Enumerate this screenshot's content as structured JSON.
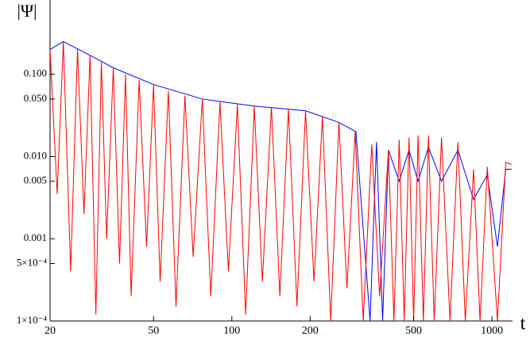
{
  "chart_data": {
    "type": "line",
    "ylabel": "|Ψ|",
    "xlabel": "t",
    "xscale": "log",
    "yscale": "log",
    "xlim": [
      20,
      1200
    ],
    "ylim": [
      0.0001,
      0.8
    ],
    "xticks": [
      20,
      50,
      100,
      200,
      500,
      1000
    ],
    "yticks": [
      {
        "value": 0.0001,
        "label": "1×10⁻⁴"
      },
      {
        "value": 0.0005,
        "label": "5×10⁻⁴"
      },
      {
        "value": 0.001,
        "label": "0.001"
      },
      {
        "value": 0.005,
        "label": "0.005"
      },
      {
        "value": 0.01,
        "label": "0.010"
      },
      {
        "value": 0.05,
        "label": "0.050"
      },
      {
        "value": 0.1,
        "label": "0.100"
      }
    ],
    "series": [
      {
        "color": "#0000ff",
        "x": [
          20,
          22.5,
          28.5,
          35,
          50,
          77,
          122,
          192,
          258,
          300,
          340,
          360,
          380,
          400,
          440,
          480,
          520,
          570,
          640,
          740,
          850,
          960,
          1050,
          1130,
          1190
        ],
        "values": [
          0.2,
          0.25,
          0.17,
          0.12,
          0.075,
          0.05,
          0.041,
          0.036,
          0.026,
          0.02,
          0.0001,
          0.015,
          0.0001,
          0.012,
          0.005,
          0.012,
          0.005,
          0.013,
          0.005,
          0.012,
          0.003,
          0.006,
          0.0008,
          0.007,
          0.007
        ]
      },
      {
        "color": "#ff0000",
        "x": [
          20,
          21.3,
          22.5,
          24,
          25.5,
          27,
          28.5,
          30,
          31.5,
          33,
          35,
          37,
          39,
          41,
          44,
          47,
          50,
          53,
          57,
          61,
          66,
          71,
          77,
          83,
          90,
          97,
          105,
          113,
          122,
          131,
          142,
          153,
          165,
          178,
          192,
          207,
          223,
          240,
          258,
          277,
          298,
          320,
          345,
          370,
          400,
          420,
          440,
          460,
          480,
          500,
          520,
          545,
          570,
          600,
          640,
          690,
          740,
          790,
          850,
          900,
          960,
          1050,
          1130,
          1190
        ],
        "values": [
          0.2,
          0.0035,
          0.25,
          0.0004,
          0.2,
          0.002,
          0.17,
          0.00012,
          0.14,
          0.001,
          0.12,
          0.0005,
          0.1,
          0.0002,
          0.085,
          0.0008,
          0.075,
          0.0003,
          0.063,
          0.00015,
          0.055,
          0.0006,
          0.05,
          0.0002,
          0.046,
          0.0004,
          0.043,
          0.00012,
          0.041,
          0.0003,
          0.04,
          0.0002,
          0.038,
          0.00015,
          0.036,
          0.0003,
          0.031,
          0.0001,
          0.026,
          0.00025,
          0.02,
          0.0001,
          0.014,
          0.0002,
          0.012,
          0.0001,
          0.016,
          0.0001,
          0.017,
          0.0001,
          0.018,
          0.0001,
          0.018,
          0.0001,
          0.017,
          0.0001,
          0.015,
          0.0001,
          0.007,
          0.0001,
          0.0075,
          0.0001,
          0.0085,
          0.008
        ]
      }
    ]
  }
}
